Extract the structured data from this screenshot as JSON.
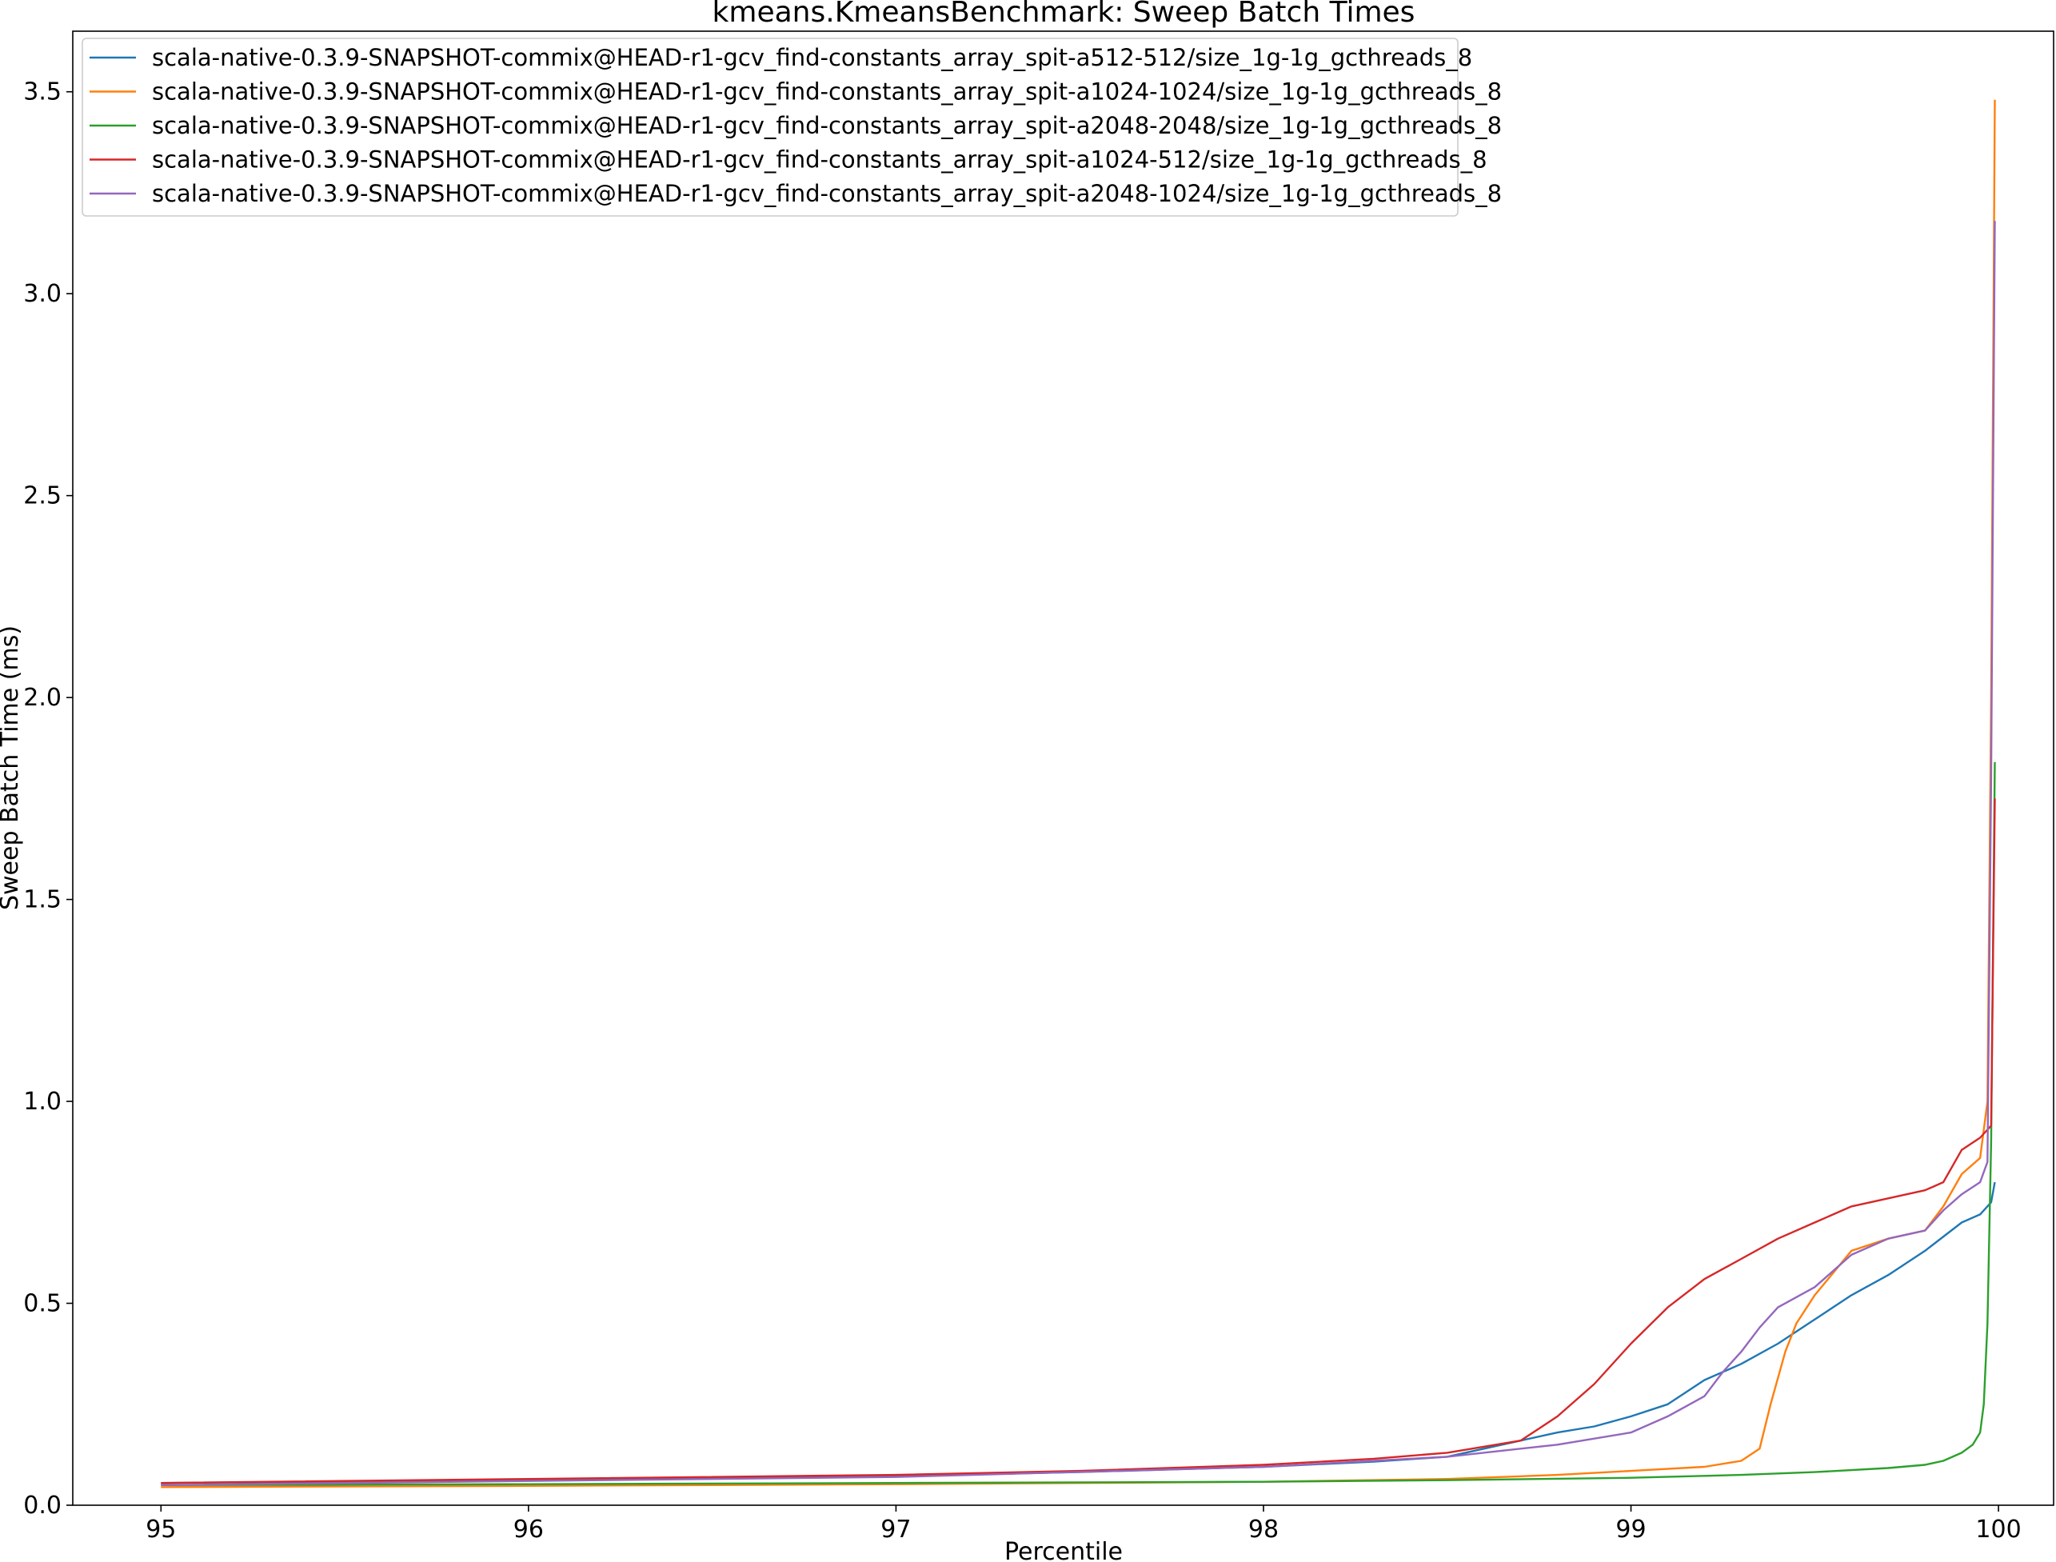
{
  "chart_data": {
    "type": "line",
    "title": "kmeans.KmeansBenchmark: Sweep Batch Times",
    "xlabel": "Percentile",
    "ylabel": "Sweep Batch Time (ms)",
    "xlim": [
      94.76,
      100.15
    ],
    "ylim": [
      0.0,
      3.65
    ],
    "xticks": [
      95,
      96,
      97,
      98,
      99,
      100
    ],
    "xtick_labels": [
      "95",
      "96",
      "97",
      "98",
      "99",
      "100"
    ],
    "yticks": [
      0.0,
      0.5,
      1.0,
      1.5,
      2.0,
      2.5,
      3.0,
      3.5
    ],
    "ytick_labels": [
      "0.0",
      "0.5",
      "1.0",
      "1.5",
      "2.0",
      "2.5",
      "3.0",
      "3.5"
    ],
    "grid": false,
    "legend_position": "top-left",
    "series": [
      {
        "name": "scala-native-0.3.9-SNAPSHOT-commix@HEAD-r1-gcv_find-constants_array_spit-a512-512/size_1g-1g_gcthreads_8",
        "color": "#1f77b4",
        "x": [
          95.0,
          96.0,
          97.0,
          97.5,
          98.0,
          98.3,
          98.5,
          98.6,
          98.7,
          98.8,
          98.9,
          99.0,
          99.1,
          99.2,
          99.3,
          99.4,
          99.5,
          99.6,
          99.7,
          99.8,
          99.9,
          99.95,
          99.98,
          99.99
        ],
        "y": [
          0.055,
          0.062,
          0.072,
          0.082,
          0.095,
          0.108,
          0.12,
          0.14,
          0.16,
          0.18,
          0.195,
          0.22,
          0.25,
          0.31,
          0.35,
          0.4,
          0.46,
          0.52,
          0.57,
          0.63,
          0.7,
          0.72,
          0.75,
          0.8
        ]
      },
      {
        "name": "scala-native-0.3.9-SNAPSHOT-commix@HEAD-r1-gcv_find-constants_array_spit-a1024-1024/size_1g-1g_gcthreads_8",
        "color": "#ff7f0e",
        "x": [
          95.0,
          96.0,
          97.0,
          98.0,
          98.5,
          98.8,
          99.0,
          99.2,
          99.3,
          99.35,
          99.38,
          99.42,
          99.45,
          99.5,
          99.6,
          99.7,
          99.8,
          99.85,
          99.9,
          99.95,
          99.97,
          99.98,
          99.99
        ],
        "y": [
          0.045,
          0.048,
          0.052,
          0.058,
          0.065,
          0.075,
          0.085,
          0.095,
          0.11,
          0.14,
          0.25,
          0.38,
          0.45,
          0.52,
          0.63,
          0.66,
          0.68,
          0.74,
          0.82,
          0.86,
          1.0,
          2.0,
          3.48
        ]
      },
      {
        "name": "scala-native-0.3.9-SNAPSHOT-commix@HEAD-r1-gcv_find-constants_array_spit-a2048-2048/size_1g-1g_gcthreads_8",
        "color": "#2ca02c",
        "x": [
          95.0,
          96.0,
          97.0,
          98.0,
          98.5,
          99.0,
          99.3,
          99.5,
          99.7,
          99.8,
          99.85,
          99.9,
          99.93,
          99.95,
          99.96,
          99.97,
          99.98,
          99.99
        ],
        "y": [
          0.05,
          0.052,
          0.055,
          0.058,
          0.062,
          0.068,
          0.075,
          0.082,
          0.092,
          0.1,
          0.11,
          0.13,
          0.15,
          0.18,
          0.25,
          0.45,
          0.9,
          1.84
        ]
      },
      {
        "name": "scala-native-0.3.9-SNAPSHOT-commix@HEAD-r1-gcv_find-constants_array_spit-a1024-512/size_1g-1g_gcthreads_8",
        "color": "#d62728",
        "x": [
          95.0,
          96.0,
          97.0,
          97.5,
          98.0,
          98.3,
          98.5,
          98.6,
          98.7,
          98.75,
          98.8,
          98.9,
          99.0,
          99.1,
          99.2,
          99.3,
          99.4,
          99.5,
          99.6,
          99.7,
          99.8,
          99.85,
          99.9,
          99.95,
          99.98,
          99.99
        ],
        "y": [
          0.055,
          0.065,
          0.075,
          0.085,
          0.1,
          0.115,
          0.13,
          0.145,
          0.16,
          0.19,
          0.22,
          0.3,
          0.4,
          0.49,
          0.56,
          0.61,
          0.66,
          0.7,
          0.74,
          0.76,
          0.78,
          0.8,
          0.88,
          0.91,
          0.94,
          1.75
        ]
      },
      {
        "name": "scala-native-0.3.9-SNAPSHOT-commix@HEAD-r1-gcv_find-constants_array_spit-a2048-1024/size_1g-1g_gcthreads_8",
        "color": "#9467bd",
        "x": [
          95.0,
          96.0,
          97.0,
          98.0,
          98.5,
          98.8,
          99.0,
          99.1,
          99.2,
          99.25,
          99.3,
          99.35,
          99.4,
          99.5,
          99.6,
          99.7,
          99.8,
          99.85,
          99.9,
          99.95,
          99.97,
          99.98,
          99.99
        ],
        "y": [
          0.05,
          0.06,
          0.07,
          0.095,
          0.12,
          0.15,
          0.18,
          0.22,
          0.27,
          0.33,
          0.38,
          0.44,
          0.49,
          0.54,
          0.62,
          0.66,
          0.68,
          0.73,
          0.77,
          0.8,
          0.85,
          1.8,
          3.18
        ]
      }
    ]
  }
}
